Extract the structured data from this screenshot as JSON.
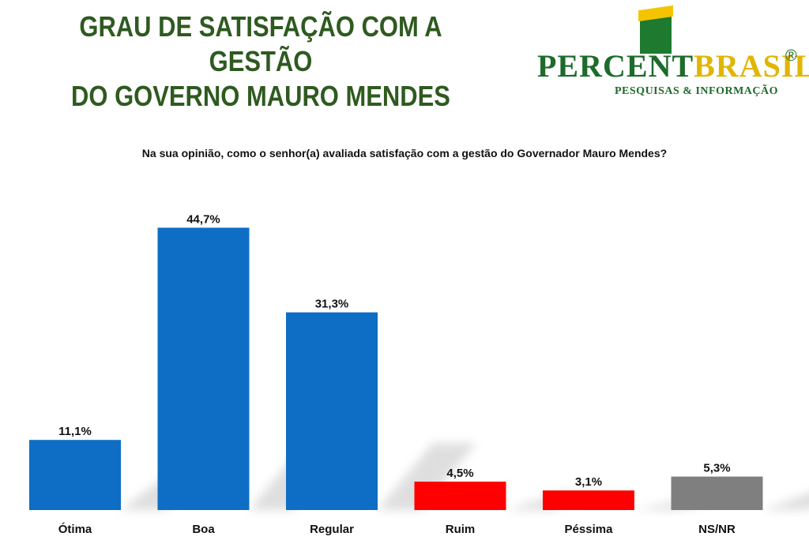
{
  "header": {
    "title_line1": "GRAU DE SATISFAÇÃO COM A GESTÃO",
    "title_line2": "DO GOVERNO MAURO MENDES"
  },
  "logo": {
    "brand_part1": "PERCENT",
    "brand_part2": "BRASIL",
    "registered": "®",
    "tagline": "PESQUISAS & INFORMAÇÃO"
  },
  "colors": {
    "title": "#2e5a1f",
    "positive": "#0e6ec5",
    "negative": "#ff0000",
    "neutral": "#7f7f7f"
  },
  "chart_data": {
    "type": "bar",
    "title": "Na sua opinião, como o senhor(a) avaliada satisfação com a gestão do Governador Mauro Mendes?",
    "categories": [
      "Ótima",
      "Boa",
      "Regular",
      "Ruim",
      "Péssima",
      "NS/NR"
    ],
    "values": [
      11.1,
      44.7,
      31.3,
      4.5,
      3.1,
      5.3
    ],
    "value_labels": [
      "11,1%",
      "44,7%",
      "31,3%",
      "4,5%",
      "3,1%",
      "5,3%"
    ],
    "bar_colors": [
      "#0e6ec5",
      "#0e6ec5",
      "#0e6ec5",
      "#ff0000",
      "#ff0000",
      "#7f7f7f"
    ],
    "unit": "%",
    "ylim": [
      0,
      50
    ],
    "grid": false,
    "legend": "none"
  }
}
